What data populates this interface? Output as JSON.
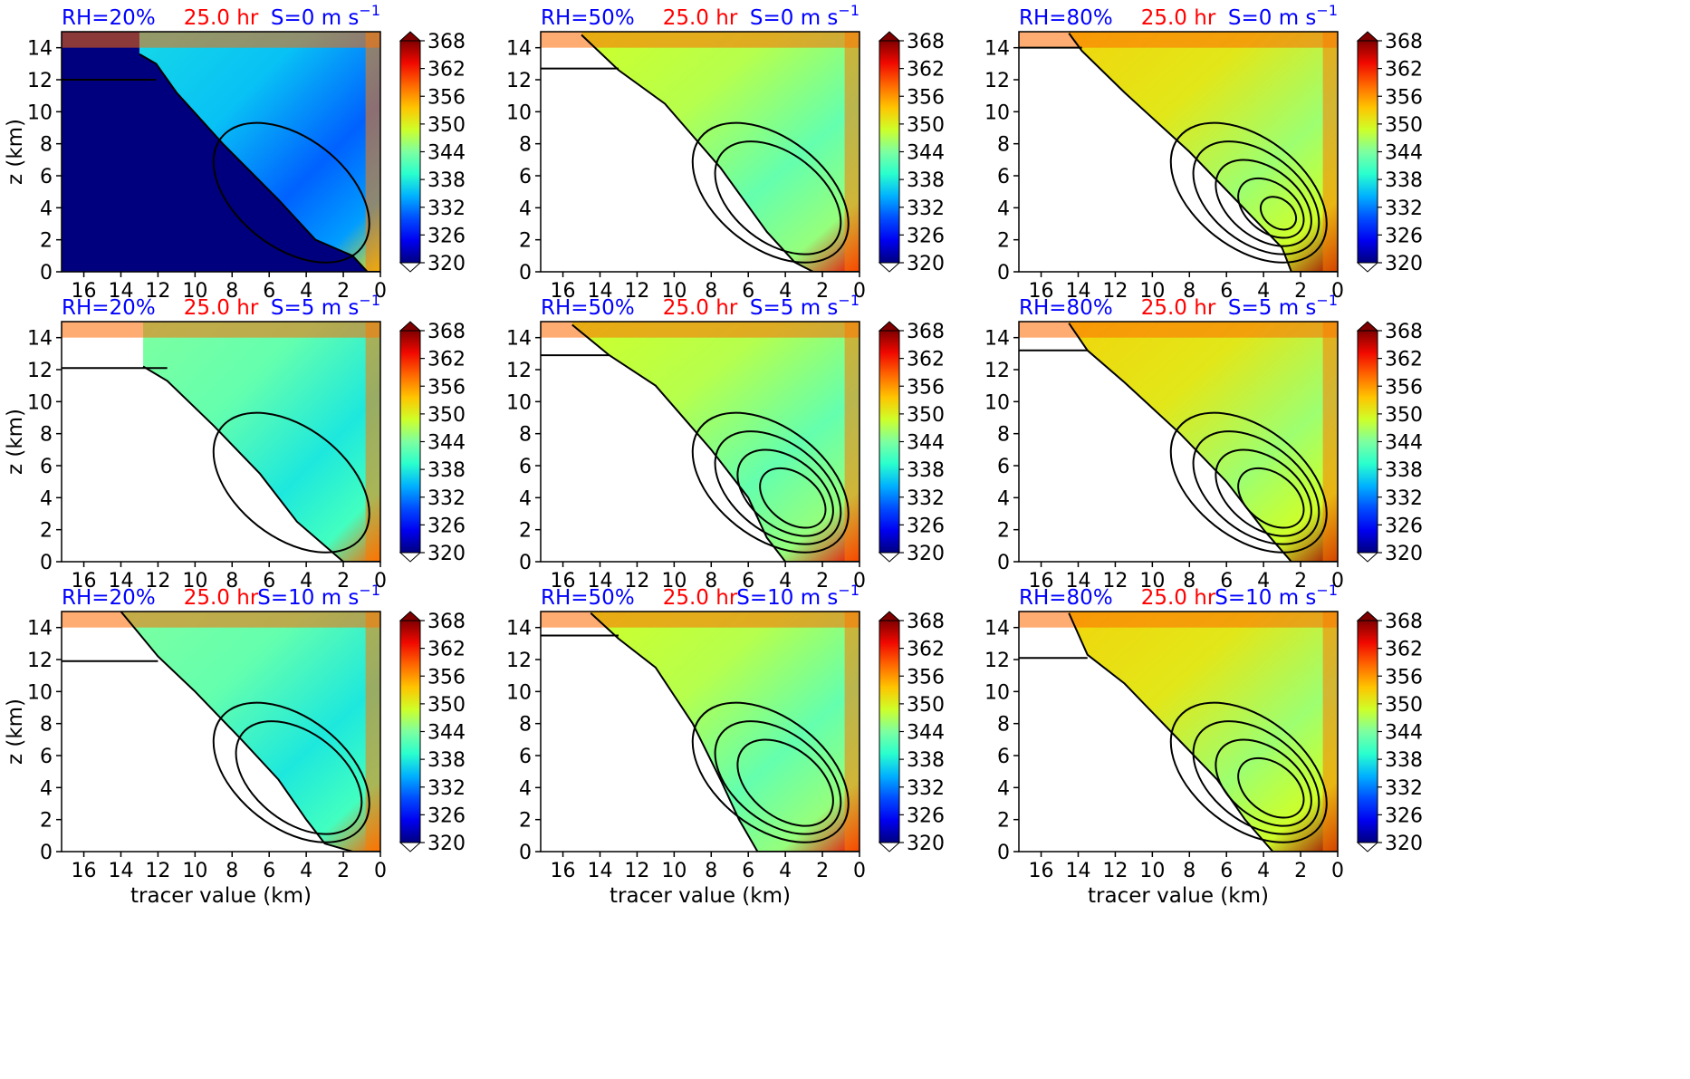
{
  "figure": {
    "xlabel": "tracer value (km)",
    "ylabel": "z (km)"
  },
  "colors": {
    "rh_title": "#0000ff",
    "time_title": "#ff0000",
    "shear_title": "#0000ff",
    "mask_fill": "#00007f",
    "contour": "#000000"
  },
  "chart_data": [
    {
      "type": "heatmap",
      "rh": "RH=20%",
      "time": "25.0 hr",
      "shear": "S=0 m s",
      "shear_exp": "−1",
      "show_ylabel": true,
      "show_xlabel": false,
      "masked_fill": true,
      "top_flat_z": 12.0,
      "wedge": [
        [
          13.0,
          13.6
        ],
        [
          12.1,
          13.0
        ],
        [
          11.0,
          11.2
        ],
        [
          8.5,
          8.0
        ],
        [
          5.5,
          4.5
        ],
        [
          3.5,
          2.0
        ],
        [
          1.5,
          1.0
        ],
        [
          0.7,
          0.0
        ]
      ],
      "contours": 1
    },
    {
      "type": "heatmap",
      "rh": "RH=50%",
      "time": "25.0 hr",
      "shear": "S=0 m s",
      "shear_exp": "−1",
      "show_ylabel": false,
      "show_xlabel": false,
      "masked_fill": false,
      "top_flat_z": 12.7,
      "wedge": [
        [
          15.0,
          14.8
        ],
        [
          13.0,
          12.6
        ],
        [
          10.5,
          10.5
        ],
        [
          7.5,
          6.5
        ],
        [
          5.0,
          2.5
        ],
        [
          3.5,
          0.6
        ],
        [
          2.5,
          0.0
        ]
      ],
      "contours": 2
    },
    {
      "type": "heatmap",
      "rh": "RH=80%",
      "time": "25.0 hr",
      "shear": "S=0 m s",
      "shear_exp": "−1",
      "show_ylabel": false,
      "show_xlabel": false,
      "masked_fill": false,
      "top_flat_z": 14.0,
      "wedge": [
        [
          14.5,
          14.9
        ],
        [
          13.8,
          13.8
        ],
        [
          11.5,
          11.2
        ],
        [
          8.0,
          7.5
        ],
        [
          5.5,
          4.5
        ],
        [
          3.0,
          1.5
        ],
        [
          2.5,
          0.0
        ]
      ],
      "contours": 5
    },
    {
      "type": "heatmap",
      "rh": "RH=20%",
      "time": "25.0 hr",
      "shear": "S=5 m s",
      "shear_exp": "−1",
      "show_ylabel": true,
      "show_xlabel": false,
      "masked_fill": false,
      "top_flat_z": 12.1,
      "wedge": [
        [
          12.8,
          12.2
        ],
        [
          11.5,
          11.3
        ],
        [
          9.0,
          8.5
        ],
        [
          6.5,
          5.5
        ],
        [
          4.5,
          2.5
        ],
        [
          3.0,
          1.0
        ],
        [
          2.0,
          0.0
        ]
      ],
      "contours": 1
    },
    {
      "type": "heatmap",
      "rh": "RH=50%",
      "time": "25.0 hr",
      "shear": "S=5 m s",
      "shear_exp": "−1",
      "show_ylabel": false,
      "show_xlabel": false,
      "masked_fill": false,
      "top_flat_z": 12.9,
      "wedge": [
        [
          15.5,
          14.8
        ],
        [
          13.5,
          12.9
        ],
        [
          11.0,
          11.0
        ],
        [
          8.0,
          7.0
        ],
        [
          6.0,
          4.0
        ],
        [
          5.0,
          1.5
        ],
        [
          4.0,
          0.0
        ]
      ],
      "contours": 4
    },
    {
      "type": "heatmap",
      "rh": "RH=80%",
      "time": "25.0 hr",
      "shear": "S=5 m s",
      "shear_exp": "−1",
      "show_ylabel": false,
      "show_xlabel": false,
      "masked_fill": false,
      "top_flat_z": 13.2,
      "wedge": [
        [
          14.5,
          14.9
        ],
        [
          13.5,
          13.2
        ],
        [
          11.5,
          11.2
        ],
        [
          8.5,
          8.0
        ],
        [
          6.0,
          5.0
        ],
        [
          4.0,
          2.0
        ],
        [
          2.5,
          0.0
        ]
      ],
      "contours": 4
    },
    {
      "type": "heatmap",
      "rh": "RH=20%",
      "time": "25.0 hr",
      "shear": "S=10 m s",
      "shear_exp": "−1",
      "show_ylabel": true,
      "show_xlabel": true,
      "masked_fill": false,
      "top_flat_z": 11.9,
      "wedge": [
        [
          14.0,
          15.0
        ],
        [
          12.0,
          12.2
        ],
        [
          10.0,
          10.0
        ],
        [
          7.5,
          7.0
        ],
        [
          5.5,
          4.5
        ],
        [
          4.0,
          2.0
        ],
        [
          3.0,
          0.5
        ],
        [
          1.5,
          0.0
        ]
      ],
      "contours": 2
    },
    {
      "type": "heatmap",
      "rh": "RH=50%",
      "time": "25.0 hr",
      "shear": "S=10 m s",
      "shear_exp": "−1",
      "show_ylabel": false,
      "show_xlabel": true,
      "masked_fill": false,
      "top_flat_z": 13.5,
      "wedge": [
        [
          14.5,
          14.9
        ],
        [
          13.0,
          13.3
        ],
        [
          11.0,
          11.5
        ],
        [
          9.0,
          8.0
        ],
        [
          7.5,
          4.5
        ],
        [
          6.5,
          2.0
        ],
        [
          5.5,
          0.0
        ]
      ],
      "contours": 3
    },
    {
      "type": "heatmap",
      "rh": "RH=80%",
      "time": "25.0 hr",
      "shear": "S=10 m s",
      "shear_exp": "−1",
      "show_ylabel": false,
      "show_xlabel": true,
      "masked_fill": false,
      "top_flat_z": 12.1,
      "wedge": [
        [
          14.5,
          14.9
        ],
        [
          13.5,
          12.3
        ],
        [
          11.5,
          10.5
        ],
        [
          9.0,
          7.5
        ],
        [
          6.5,
          4.5
        ],
        [
          5.0,
          2.0
        ],
        [
          3.5,
          0.0
        ]
      ],
      "contours": 4
    }
  ],
  "axes": {
    "x_ticks": [
      16,
      14,
      12,
      10,
      8,
      6,
      4,
      2,
      0
    ],
    "x_range": [
      17.2,
      0
    ],
    "y_ticks": [
      0,
      2,
      4,
      6,
      8,
      10,
      12,
      14
    ],
    "y_range": [
      0,
      15
    ]
  },
  "colorbar": {
    "ticks": [
      320,
      326,
      332,
      338,
      344,
      350,
      356,
      362,
      368
    ],
    "range": [
      320,
      368
    ],
    "levels": 16,
    "colormap": [
      "#00007f",
      "#0000f1",
      "#004dff",
      "#00b1ff",
      "#29ffce",
      "#7dffa0",
      "#ceff29",
      "#ffc400",
      "#ff6800",
      "#f10800",
      "#7f0000"
    ]
  }
}
